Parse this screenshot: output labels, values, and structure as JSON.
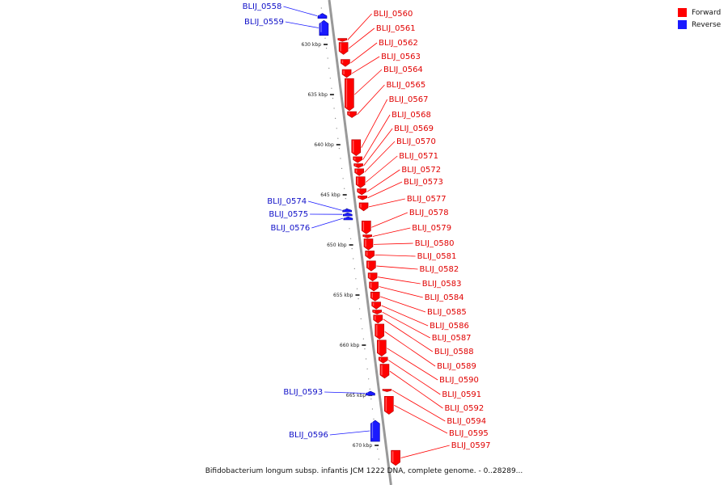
{
  "legend": {
    "forward": {
      "label": "Forward",
      "color": "#ff0000"
    },
    "reverse": {
      "label": "Reverse",
      "color": "#1a1aff"
    }
  },
  "caption": "Bifidobacterium longum subsp. infantis JCM 1222 DNA, complete genome. - 0..28289...",
  "axis": {
    "start_kbp": 626.9,
    "end_kbp": 672,
    "ticks": [
      {
        "kbp": 630,
        "label": "630 kbp"
      },
      {
        "kbp": 635,
        "label": "635 kbp"
      },
      {
        "kbp": 640,
        "label": "640 kbp"
      },
      {
        "kbp": 645,
        "label": "645 kbp"
      },
      {
        "kbp": 650,
        "label": "650 kbp"
      },
      {
        "kbp": 655,
        "label": "655 kbp"
      },
      {
        "kbp": 660,
        "label": "660 kbp"
      },
      {
        "kbp": 665,
        "label": "665 kbp"
      },
      {
        "kbp": 670,
        "label": "670 kbp"
      }
    ]
  },
  "genes": [
    {
      "name": "BLIJ_0558",
      "strand": "reverse",
      "start_kbp": 626.9,
      "end_kbp": 627.4
    },
    {
      "name": "BLIJ_0559",
      "strand": "reverse",
      "start_kbp": 627.6,
      "end_kbp": 629.1
    },
    {
      "name": "BLIJ_0560",
      "strand": "forward",
      "start_kbp": 629.4,
      "end_kbp": 629.7
    },
    {
      "name": "BLIJ_0561",
      "strand": "forward",
      "start_kbp": 629.8,
      "end_kbp": 631.0
    },
    {
      "name": "BLIJ_0562",
      "strand": "forward",
      "start_kbp": 631.5,
      "end_kbp": 632.2
    },
    {
      "name": "BLIJ_0563",
      "strand": "forward",
      "start_kbp": 632.5,
      "end_kbp": 633.3
    },
    {
      "name": "BLIJ_0564",
      "strand": "forward",
      "start_kbp": 633.4,
      "end_kbp": 636.6
    },
    {
      "name": "BLIJ_0565",
      "strand": "forward",
      "start_kbp": 636.7,
      "end_kbp": 637.3
    },
    {
      "name": "BLIJ_0567",
      "strand": "forward",
      "start_kbp": 639.5,
      "end_kbp": 641.1
    },
    {
      "name": "BLIJ_0568",
      "strand": "forward",
      "start_kbp": 641.2,
      "end_kbp": 641.8
    },
    {
      "name": "BLIJ_0569",
      "strand": "forward",
      "start_kbp": 641.9,
      "end_kbp": 642.3
    },
    {
      "name": "BLIJ_0570",
      "strand": "forward",
      "start_kbp": 642.4,
      "end_kbp": 643.1
    },
    {
      "name": "BLIJ_0571",
      "strand": "forward",
      "start_kbp": 643.2,
      "end_kbp": 644.3
    },
    {
      "name": "BLIJ_0572",
      "strand": "forward",
      "start_kbp": 644.4,
      "end_kbp": 645.0
    },
    {
      "name": "BLIJ_0573",
      "strand": "forward",
      "start_kbp": 645.1,
      "end_kbp": 645.5
    },
    {
      "name": "BLIJ_0574",
      "strand": "reverse",
      "start_kbp": 646.4,
      "end_kbp": 646.7
    },
    {
      "name": "BLIJ_0575",
      "strand": "reverse",
      "start_kbp": 646.8,
      "end_kbp": 647.1
    },
    {
      "name": "BLIJ_0576",
      "strand": "reverse",
      "start_kbp": 647.2,
      "end_kbp": 647.5
    },
    {
      "name": "BLIJ_0577",
      "strand": "forward",
      "start_kbp": 645.8,
      "end_kbp": 646.6
    },
    {
      "name": "BLIJ_0578",
      "strand": "forward",
      "start_kbp": 647.6,
      "end_kbp": 648.9
    },
    {
      "name": "BLIJ_0579",
      "strand": "forward",
      "start_kbp": 649.0,
      "end_kbp": 649.3
    },
    {
      "name": "BLIJ_0580",
      "strand": "forward",
      "start_kbp": 649.4,
      "end_kbp": 650.5
    },
    {
      "name": "BLIJ_0581",
      "strand": "forward",
      "start_kbp": 650.6,
      "end_kbp": 651.4
    },
    {
      "name": "BLIJ_0582",
      "strand": "forward",
      "start_kbp": 651.6,
      "end_kbp": 652.6
    },
    {
      "name": "BLIJ_0583",
      "strand": "forward",
      "start_kbp": 652.8,
      "end_kbp": 653.6
    },
    {
      "name": "BLIJ_0584",
      "strand": "forward",
      "start_kbp": 653.7,
      "end_kbp": 654.6
    },
    {
      "name": "BLIJ_0585",
      "strand": "forward",
      "start_kbp": 654.7,
      "end_kbp": 655.6
    },
    {
      "name": "BLIJ_0586",
      "strand": "forward",
      "start_kbp": 655.7,
      "end_kbp": 656.4
    },
    {
      "name": "BLIJ_0587",
      "strand": "forward",
      "start_kbp": 656.5,
      "end_kbp": 656.9
    },
    {
      "name": "BLIJ_0588",
      "strand": "forward",
      "start_kbp": 657.0,
      "end_kbp": 657.8
    },
    {
      "name": "BLIJ_0589",
      "strand": "forward",
      "start_kbp": 657.9,
      "end_kbp": 659.4
    },
    {
      "name": "BLIJ_0590",
      "strand": "forward",
      "start_kbp": 659.5,
      "end_kbp": 661.1
    },
    {
      "name": "BLIJ_0591",
      "strand": "forward",
      "start_kbp": 661.2,
      "end_kbp": 661.8
    },
    {
      "name": "BLIJ_0592",
      "strand": "forward",
      "start_kbp": 661.9,
      "end_kbp": 663.3
    },
    {
      "name": "BLIJ_0593",
      "strand": "reverse",
      "start_kbp": 664.6,
      "end_kbp": 665.0
    },
    {
      "name": "BLIJ_0594",
      "strand": "forward",
      "start_kbp": 664.4,
      "end_kbp": 664.6
    },
    {
      "name": "BLIJ_0595",
      "strand": "forward",
      "start_kbp": 665.1,
      "end_kbp": 666.9
    },
    {
      "name": "BLIJ_0596",
      "strand": "reverse",
      "start_kbp": 667.5,
      "end_kbp": 669.6
    },
    {
      "name": "BLIJ_0597",
      "strand": "forward",
      "start_kbp": 670.5,
      "end_kbp": 672.0
    }
  ]
}
